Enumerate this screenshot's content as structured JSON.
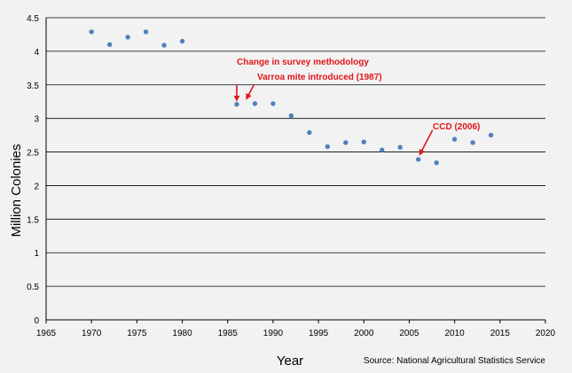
{
  "chart_data": {
    "type": "scatter",
    "title": "",
    "xlabel": "Year",
    "ylabel": "Million Colonies",
    "xlim": [
      1965,
      2020
    ],
    "ylim": [
      0,
      4.5
    ],
    "x_ticks": [
      "1965",
      "1970",
      "1975",
      "1980",
      "1985",
      "1990",
      "1995",
      "2000",
      "2005",
      "2010",
      "2015",
      "2020"
    ],
    "y_ticks": [
      "0",
      "0.5",
      "1",
      "1.5",
      "2",
      "2.5",
      "3",
      "3.5",
      "4",
      "4.5"
    ],
    "grid": "horizontal",
    "legend": "none",
    "series": [
      {
        "color": "#4f81bd",
        "points": [
          {
            "x": 1970,
            "y": 4.29
          },
          {
            "x": 1972,
            "y": 4.1
          },
          {
            "x": 1974,
            "y": 4.21
          },
          {
            "x": 1976,
            "y": 4.29
          },
          {
            "x": 1978,
            "y": 4.09
          },
          {
            "x": 1980,
            "y": 4.15
          },
          {
            "x": 1986,
            "y": 3.21
          },
          {
            "x": 1988,
            "y": 3.22
          },
          {
            "x": 1990,
            "y": 3.22
          },
          {
            "x": 1992,
            "y": 3.04
          },
          {
            "x": 1994,
            "y": 2.79
          },
          {
            "x": 1996,
            "y": 2.58
          },
          {
            "x": 1998,
            "y": 2.64
          },
          {
            "x": 2000,
            "y": 2.65
          },
          {
            "x": 2002,
            "y": 2.53
          },
          {
            "x": 2004,
            "y": 2.57
          },
          {
            "x": 2006,
            "y": 2.39
          },
          {
            "x": 2008,
            "y": 2.34
          },
          {
            "x": 2010,
            "y": 2.69
          },
          {
            "x": 2012,
            "y": 2.64
          },
          {
            "x": 2014,
            "y": 2.75
          }
        ]
      }
    ],
    "annotations": [
      {
        "text": "Change in survey methodology",
        "x": 1986,
        "y": 3.21,
        "color": "#e0161b"
      },
      {
        "text": "Varroa mite introduced (1987)",
        "x": 1987,
        "y": 3.22,
        "color": "#e0161b"
      },
      {
        "text": "CCD (2006)",
        "x": 2006,
        "y": 2.39,
        "color": "#e0161b"
      }
    ],
    "source": "Source:  National Agricultural Statistics Service"
  }
}
